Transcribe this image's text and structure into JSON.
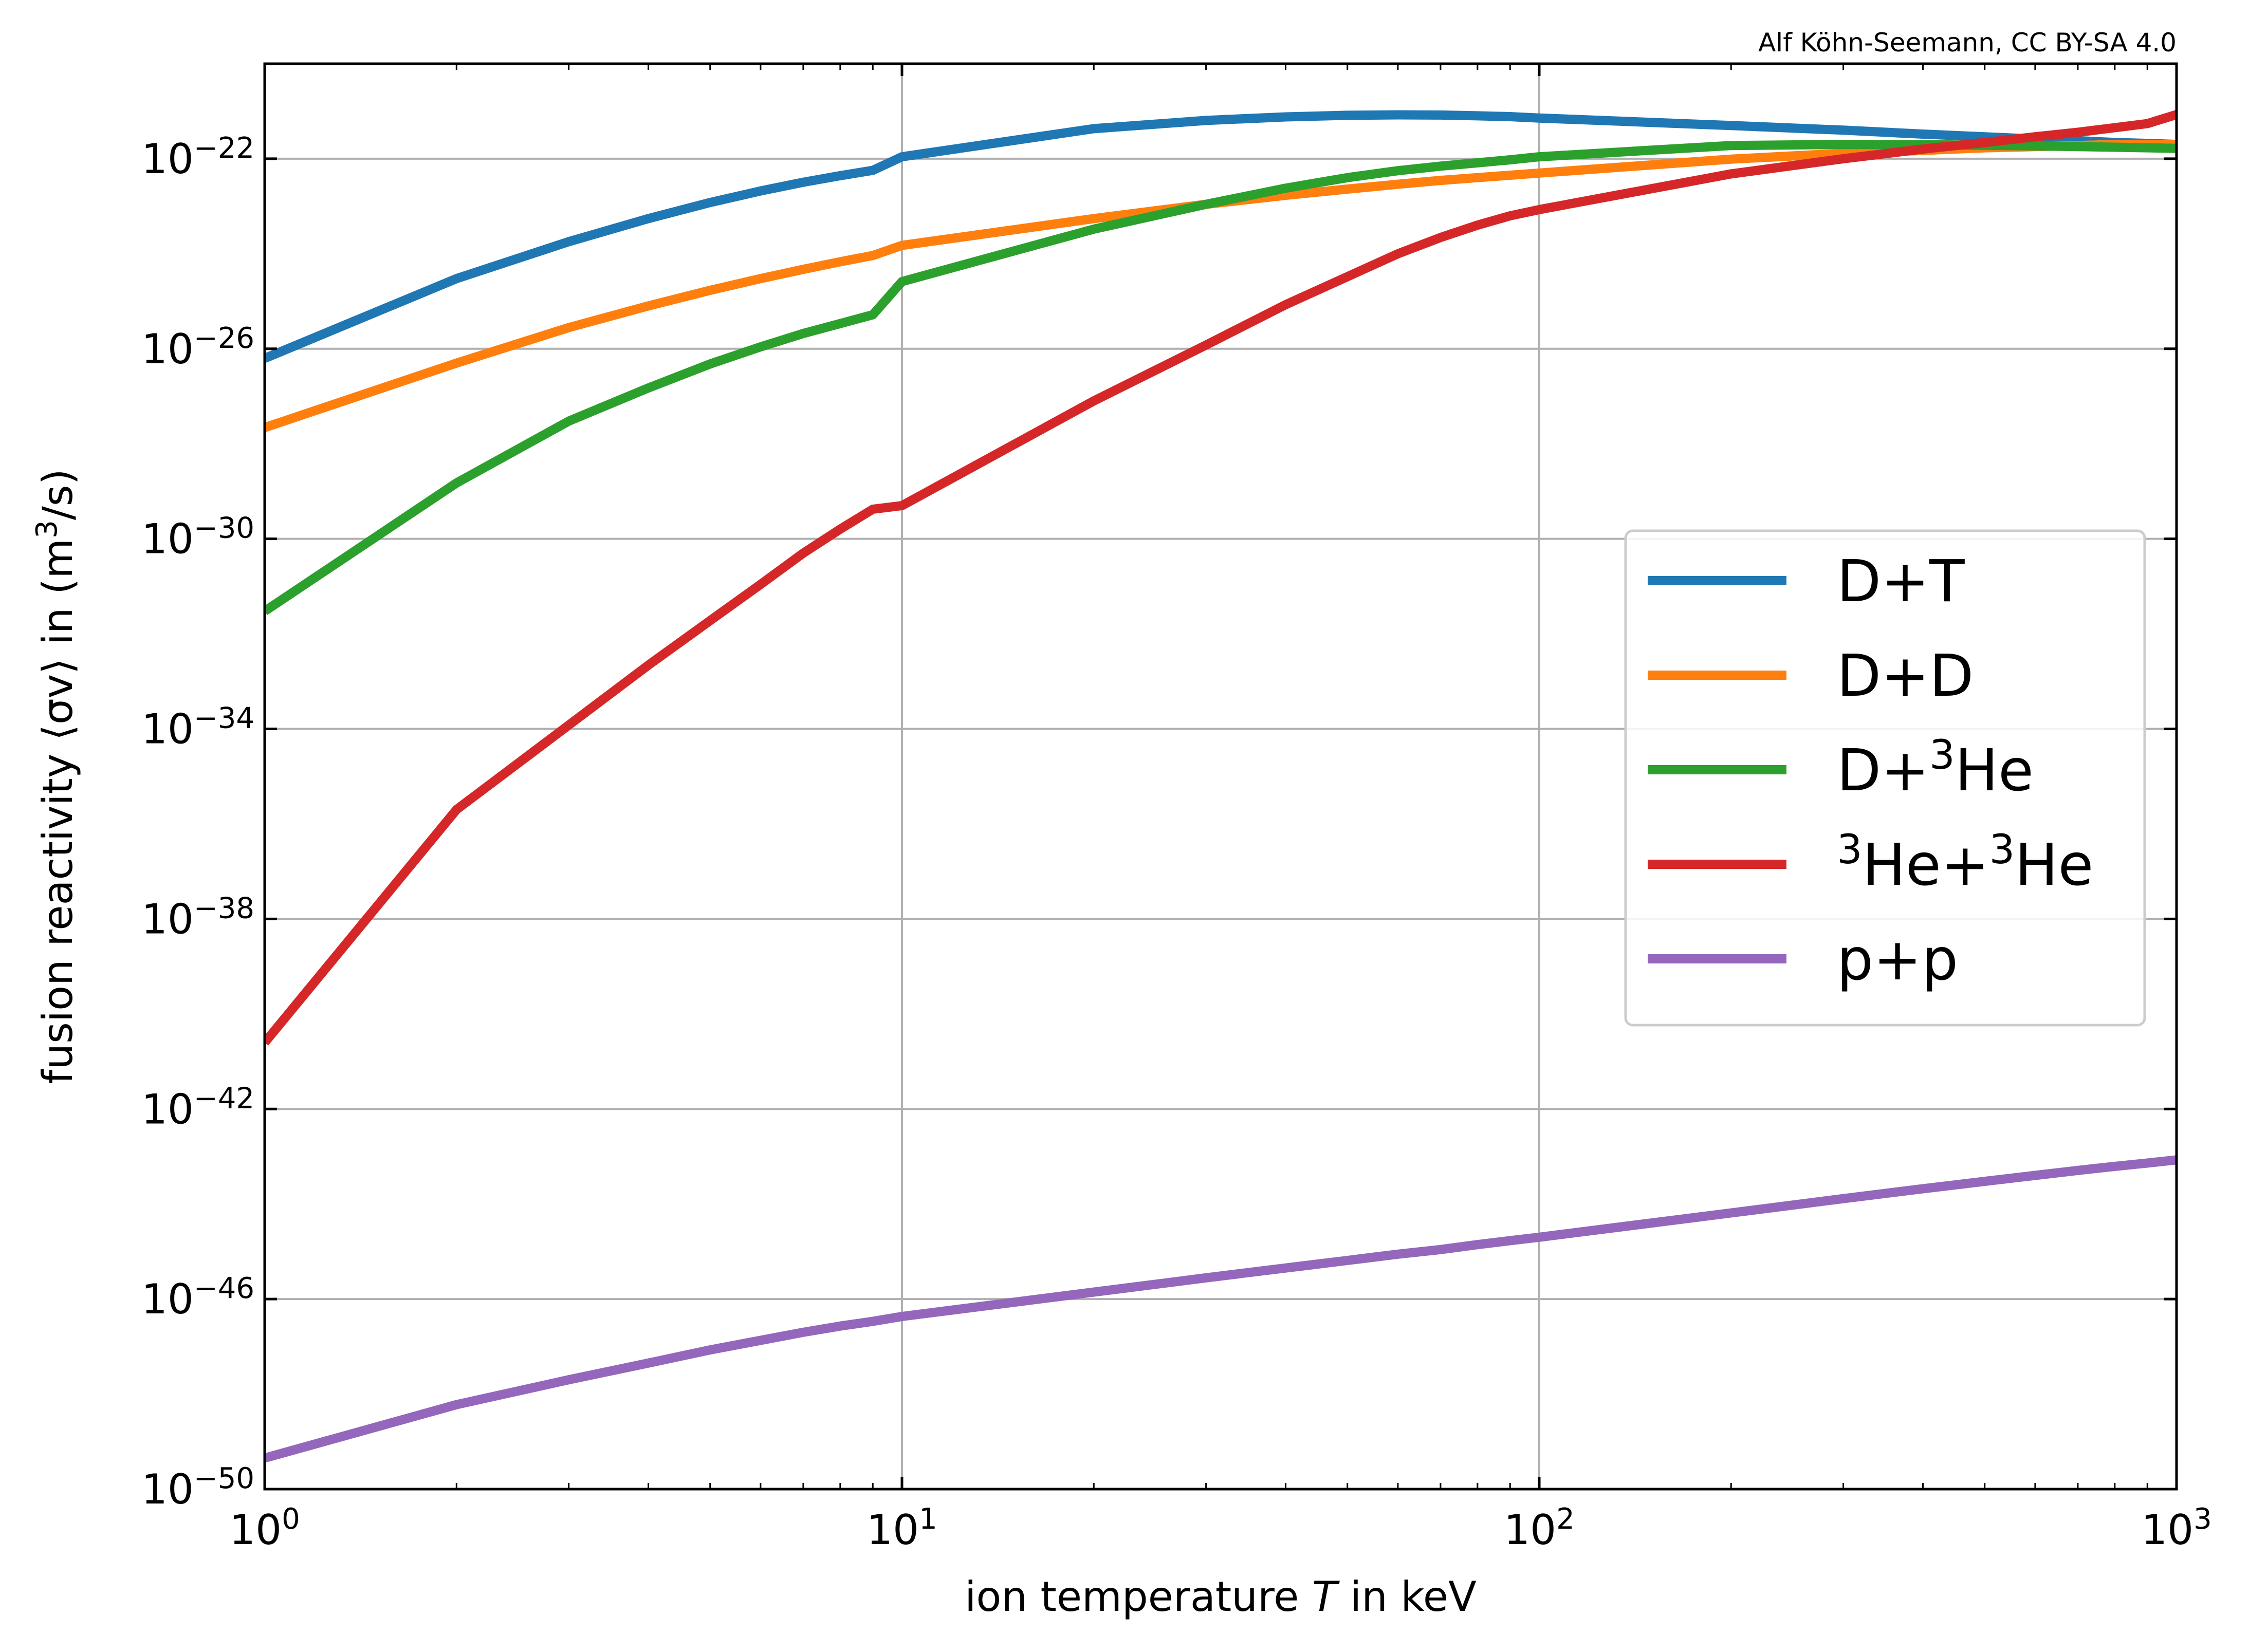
{
  "credit": "Alf Köhn-Seemann, CC BY-SA 4.0",
  "chart_data": {
    "type": "line",
    "xscale": "log",
    "yscale": "log",
    "xlim": [
      1,
      1000
    ],
    "ylim": [
      1e-50,
      1e-20
    ],
    "grid": true,
    "legend_position": "center-right",
    "xlabel": {
      "text": "ion temperature ",
      "italic": "T",
      "suffix": " in keV"
    },
    "ylabel": {
      "text": "fusion reactivity ⟨σv⟩ in (m",
      "sup": "3",
      "suffix": "/s)"
    },
    "x_ticks": [
      {
        "base": "10",
        "exp": "0",
        "value": 1
      },
      {
        "base": "10",
        "exp": "1",
        "value": 10
      },
      {
        "base": "10",
        "exp": "2",
        "value": 100
      },
      {
        "base": "10",
        "exp": "3",
        "value": 1000
      }
    ],
    "y_ticks": [
      {
        "base": "10",
        "exp": "−50",
        "value": 1e-50
      },
      {
        "base": "10",
        "exp": "−46",
        "value": 1e-46
      },
      {
        "base": "10",
        "exp": "−42",
        "value": 1e-42
      },
      {
        "base": "10",
        "exp": "−38",
        "value": 1e-38
      },
      {
        "base": "10",
        "exp": "−34",
        "value": 1e-34
      },
      {
        "base": "10",
        "exp": "−30",
        "value": 1e-30
      },
      {
        "base": "10",
        "exp": "−26",
        "value": 1e-26
      },
      {
        "base": "10",
        "exp": "−22",
        "value": 1e-22
      }
    ],
    "series": [
      {
        "name": "D+T",
        "legend_parts": [
          [
            "",
            "D+T"
          ]
        ],
        "color": "#1f77b4",
        "x": [
          1,
          2,
          3,
          4,
          5,
          6,
          7,
          8,
          9,
          10,
          20,
          30,
          40,
          50,
          60,
          70,
          80,
          90,
          100,
          200,
          300,
          400,
          500,
          600,
          700,
          800,
          900,
          1000
        ],
        "y": [
          6.3e-27,
          3e-25,
          1.8e-24,
          5.5e-24,
          1.2e-23,
          2.1e-23,
          3.2e-23,
          4.4e-23,
          5.7e-23,
          1.1e-22,
          4.3e-22,
          6.4e-22,
          7.6e-22,
          8.2e-22,
          8.4e-22,
          8.3e-22,
          8e-22,
          7.7e-22,
          7.2e-22,
          5e-22,
          4e-22,
          3.3e-22,
          2.9e-22,
          2.6e-22,
          2.4e-22,
          2.2e-22,
          2.1e-22,
          2e-22
        ]
      },
      {
        "name": "D+D",
        "legend_parts": [
          [
            "",
            "D+D"
          ]
        ],
        "color": "#ff7f0e",
        "x": [
          1,
          2,
          3,
          4,
          5,
          6,
          7,
          8,
          9,
          10,
          20,
          30,
          40,
          50,
          60,
          70,
          80,
          90,
          100,
          200,
          300,
          400,
          500,
          600,
          700,
          800,
          900,
          1000
        ],
        "y": [
          2.2e-28,
          5e-27,
          2.8e-26,
          8e-26,
          1.7e-25,
          3e-25,
          4.7e-25,
          6.8e-25,
          9.2e-25,
          1.5e-24,
          5.5e-24,
          1.1e-23,
          1.7e-23,
          2.3e-23,
          2.9e-23,
          3.5e-23,
          4e-23,
          4.5e-23,
          5e-23,
          9.8e-23,
          1.3e-22,
          1.5e-22,
          1.7e-22,
          1.8e-22,
          1.9e-22,
          2e-22,
          2e-22,
          2e-22
        ]
      },
      {
        "name": "D+³He",
        "legend_parts": [
          [
            "",
            "D+"
          ],
          [
            "sup",
            "3"
          ],
          [
            "",
            "He"
          ]
        ],
        "color": "#2ca02c",
        "x": [
          1,
          2,
          3,
          4,
          5,
          6,
          7,
          8,
          9,
          10,
          20,
          30,
          40,
          50,
          60,
          70,
          80,
          90,
          100,
          200,
          300,
          400,
          500,
          600,
          700,
          800,
          900,
          1000
        ],
        "y": [
          3e-32,
          1.5e-29,
          3e-28,
          1.5e-27,
          4.8e-27,
          1.1e-26,
          2.1e-26,
          3.4e-26,
          5.2e-26,
          2.6e-25,
          3.3e-24,
          1.1e-23,
          2.4e-23,
          4e-23,
          5.6e-23,
          7e-23,
          8.2e-23,
          9.5e-23,
          1.1e-22,
          1.9e-22,
          2e-22,
          1.98e-22,
          1.92e-22,
          1.86e-22,
          1.8e-22,
          1.75e-22,
          1.7e-22,
          1.65e-22
        ]
      },
      {
        "name": "³He+³He",
        "legend_parts": [
          [
            "sup",
            "3"
          ],
          [
            "",
            "He+"
          ],
          [
            "sup",
            "3"
          ],
          [
            "",
            "He"
          ]
        ],
        "color": "#d62728",
        "x": [
          1,
          2,
          3,
          4,
          5,
          6,
          7,
          8,
          9,
          10,
          20,
          30,
          40,
          50,
          60,
          70,
          80,
          90,
          100,
          200,
          300,
          400,
          500,
          600,
          700,
          800,
          900,
          1000
        ],
        "y": [
          2.5e-41,
          2e-36,
          1.2e-34,
          2.2e-33,
          1.9e-32,
          1.1e-31,
          5e-31,
          1.6e-30,
          4.2e-30,
          5e-30,
          8e-28,
          1.2e-26,
          8.5e-26,
          3.3e-25,
          1e-24,
          2.2e-24,
          4e-24,
          6.3e-24,
          8.5e-24,
          4.8e-23,
          1e-22,
          1.6e-22,
          2.2e-22,
          2.9e-22,
          3.6e-22,
          4.5e-22,
          5.5e-22,
          8.5e-22
        ]
      },
      {
        "name": "p+p",
        "legend_parts": [
          [
            "",
            "p+p"
          ]
        ],
        "color": "#9467bd",
        "x": [
          1,
          2,
          3,
          4,
          5,
          6,
          7,
          8,
          9,
          10,
          20,
          30,
          40,
          50,
          60,
          70,
          80,
          90,
          100,
          200,
          300,
          400,
          500,
          600,
          700,
          800,
          900,
          1000
        ],
        "y": [
          4.5e-50,
          6e-49,
          2e-48,
          4.5e-48,
          8.5e-48,
          1.35e-47,
          2e-47,
          2.7e-47,
          3.4e-47,
          4.3e-47,
          1.4e-46,
          2.8e-46,
          4.5e-46,
          6.5e-46,
          8.8e-46,
          1.1e-45,
          1.4e-45,
          1.7e-45,
          2e-45,
          6.5e-45,
          1.3e-44,
          2.1e-44,
          3e-44,
          4e-44,
          5.1e-44,
          6.2e-44,
          7.3e-44,
          8.5e-44
        ]
      }
    ]
  }
}
